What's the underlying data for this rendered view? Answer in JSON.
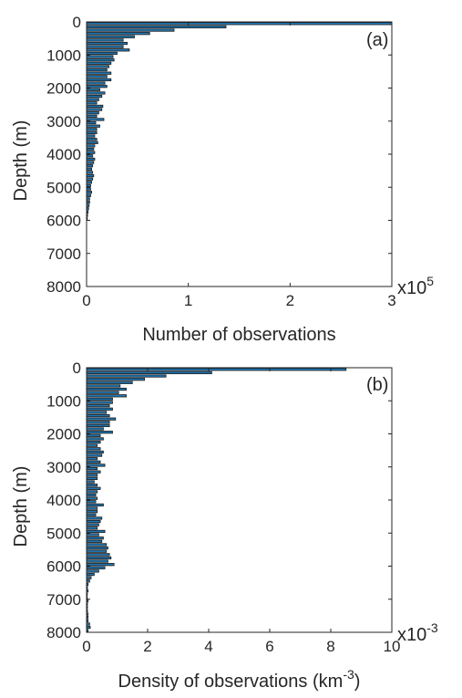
{
  "chart_data": [
    {
      "type": "bar",
      "orientation": "horizontal",
      "panel_label": "(a)",
      "xlabel": "Number of observations",
      "ylabel": "Depth (m)",
      "x_exponent": {
        "base": "x10",
        "power": "5"
      },
      "xlim": [
        0,
        3
      ],
      "ylim": [
        0,
        8000
      ],
      "y_reversed": true,
      "x_ticks": [
        "0",
        "1",
        "2",
        "3"
      ],
      "y_ticks": [
        "0",
        "1000",
        "2000",
        "3000",
        "4000",
        "5000",
        "6000",
        "7000",
        "8000"
      ],
      "bin_width": 100,
      "depth": [
        0,
        100,
        200,
        300,
        400,
        500,
        600,
        700,
        800,
        900,
        1000,
        1100,
        1200,
        1300,
        1400,
        1500,
        1600,
        1700,
        1800,
        1900,
        2000,
        2100,
        2200,
        2300,
        2400,
        2500,
        2600,
        2700,
        2800,
        2900,
        3000,
        3100,
        3200,
        3300,
        3400,
        3500,
        3600,
        3700,
        3800,
        3900,
        4000,
        4100,
        4200,
        4300,
        4400,
        4500,
        4600,
        4700,
        4800,
        4900,
        5000,
        5100,
        5200,
        5300,
        5400,
        5500,
        5600,
        5700,
        5800,
        5900
      ],
      "values": [
        3.0,
        1.37,
        0.86,
        0.62,
        0.47,
        0.36,
        0.4,
        0.36,
        0.42,
        0.3,
        0.26,
        0.27,
        0.24,
        0.22,
        0.2,
        0.24,
        0.2,
        0.24,
        0.18,
        0.2,
        0.13,
        0.18,
        0.15,
        0.12,
        0.1,
        0.16,
        0.15,
        0.12,
        0.1,
        0.17,
        0.09,
        0.13,
        0.1,
        0.1,
        0.08,
        0.1,
        0.11,
        0.08,
        0.07,
        0.08,
        0.06,
        0.08,
        0.07,
        0.06,
        0.05,
        0.06,
        0.07,
        0.06,
        0.05,
        0.04,
        0.04,
        0.05,
        0.04,
        0.03,
        0.03,
        0.025,
        0.02,
        0.015,
        0.01,
        0.005
      ]
    },
    {
      "type": "bar",
      "orientation": "horizontal",
      "panel_label": "(b)",
      "xlabel": "Density of observations (km",
      "xlabel_sup": "-3",
      "xlabel_end": ")",
      "ylabel": "Depth (m)",
      "x_exponent": {
        "base": "x10",
        "power": "-3"
      },
      "xlim": [
        0,
        10
      ],
      "ylim": [
        0,
        8000
      ],
      "y_reversed": true,
      "x_ticks": [
        "0",
        "2",
        "4",
        "6",
        "8",
        "10"
      ],
      "y_ticks": [
        "0",
        "1000",
        "2000",
        "3000",
        "4000",
        "5000",
        "6000",
        "7000",
        "8000"
      ],
      "bin_width": 100,
      "depth": [
        0,
        100,
        200,
        300,
        400,
        500,
        600,
        700,
        800,
        900,
        1000,
        1100,
        1200,
        1300,
        1400,
        1500,
        1600,
        1700,
        1800,
        1900,
        2000,
        2100,
        2200,
        2300,
        2400,
        2500,
        2600,
        2700,
        2800,
        2900,
        3000,
        3100,
        3200,
        3300,
        3400,
        3500,
        3600,
        3700,
        3800,
        3900,
        4000,
        4100,
        4200,
        4300,
        4400,
        4500,
        4600,
        4700,
        4800,
        4900,
        5000,
        5100,
        5200,
        5300,
        5400,
        5500,
        5600,
        5700,
        5800,
        5900,
        6000,
        6100,
        6200,
        6300,
        6400,
        6500,
        6600,
        6700,
        6800,
        6900,
        7000,
        7100,
        7200,
        7300,
        7400,
        7500,
        7600,
        7700,
        7800,
        7900
      ],
      "values": [
        8.5,
        4.1,
        2.6,
        1.9,
        1.5,
        1.1,
        1.3,
        1.05,
        1.3,
        0.85,
        0.85,
        0.75,
        0.85,
        0.65,
        0.75,
        0.95,
        0.75,
        0.75,
        0.55,
        0.85,
        0.45,
        0.55,
        0.45,
        0.35,
        0.45,
        0.55,
        0.5,
        0.35,
        0.45,
        0.6,
        0.35,
        0.45,
        0.35,
        0.35,
        0.25,
        0.35,
        0.45,
        0.35,
        0.3,
        0.35,
        0.3,
        0.55,
        0.35,
        0.35,
        0.3,
        0.5,
        0.45,
        0.4,
        0.35,
        0.6,
        0.4,
        0.55,
        0.5,
        0.65,
        0.7,
        0.65,
        0.75,
        0.8,
        0.7,
        0.9,
        0.6,
        0.4,
        0.25,
        0.15,
        0.1,
        0.05,
        0.03,
        0.05,
        0.02,
        0.02,
        0.05,
        0.03,
        0.03,
        0.03,
        0.05,
        0.05,
        0.05,
        0.1,
        0.12,
        0.05
      ]
    }
  ]
}
